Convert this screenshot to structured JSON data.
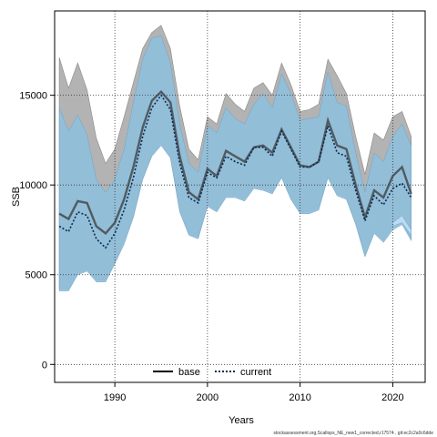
{
  "chart_data": {
    "type": "line",
    "title": "",
    "xlabel": "Years",
    "ylabel": "SSB",
    "xlim": [
      1983.5,
      2023.5
    ],
    "ylim": [
      -1000,
      19700
    ],
    "x_ticks": [
      1990,
      2000,
      2010,
      2020
    ],
    "y_ticks": [
      0,
      5000,
      10000,
      15000
    ],
    "grid": true,
    "legend": {
      "position": "bottom-center",
      "entries": [
        {
          "label": "base",
          "color": "#000000",
          "style": "solid"
        },
        {
          "label": "current",
          "color": "#1a3a6b",
          "style": "dotted"
        }
      ]
    },
    "x": [
      1984,
      1985,
      1986,
      1987,
      1988,
      1989,
      1990,
      1991,
      1992,
      1993,
      1994,
      1995,
      1996,
      1997,
      1998,
      1999,
      2000,
      2001,
      2002,
      2003,
      2004,
      2005,
      2006,
      2007,
      2008,
      2009,
      2010,
      2011,
      2012,
      2013,
      2014,
      2015,
      2016,
      2017,
      2018,
      2019,
      2020,
      2021,
      2022
    ],
    "series": [
      {
        "name": "base",
        "color": "#1a1a1a",
        "values": [
          8400,
          8100,
          9100,
          9000,
          7700,
          7300,
          7900,
          9200,
          11000,
          13200,
          14700,
          15200,
          14600,
          11600,
          9600,
          9200,
          10900,
          10500,
          11900,
          11600,
          11300,
          12100,
          12200,
          11800,
          13100,
          12100,
          11100,
          11000,
          11300,
          13600,
          12200,
          12000,
          10000,
          8200,
          9700,
          9300,
          10500,
          11000,
          9500
        ],
        "lower": [
          4200,
          4200,
          5100,
          5300,
          4700,
          4700,
          5700,
          6900,
          8300,
          10400,
          11700,
          12300,
          11600,
          8600,
          7300,
          7100,
          8900,
          8600,
          9400,
          9400,
          9200,
          9900,
          9800,
          9600,
          10500,
          9300,
          8500,
          8500,
          8700,
          10500,
          9500,
          9300,
          7900,
          6100,
          7400,
          6900,
          7700,
          7900,
          7000
        ],
        "upper": [
          17100,
          15400,
          16800,
          15300,
          12600,
          11200,
          12000,
          13800,
          15700,
          17600,
          18500,
          18900,
          17600,
          14400,
          12000,
          11400,
          13800,
          13400,
          15100,
          14500,
          14100,
          15400,
          15700,
          15000,
          16800,
          15600,
          14100,
          14200,
          14500,
          17000,
          16100,
          15100,
          12700,
          10600,
          12900,
          12500,
          13800,
          14100,
          12700
        ]
      },
      {
        "name": "current",
        "color": "#0a2a55",
        "values": [
          7700,
          7400,
          8500,
          8300,
          7000,
          6500,
          7300,
          8600,
          10400,
          12700,
          14300,
          15000,
          14200,
          11200,
          9300,
          9000,
          10700,
          10400,
          11600,
          11300,
          11100,
          12100,
          12100,
          11600,
          13000,
          12000,
          11000,
          11000,
          11300,
          13300,
          11800,
          11600,
          9700,
          8000,
          9400,
          8900,
          9800,
          10100,
          9300
        ],
        "lower": [
          4100,
          4100,
          5000,
          5200,
          4600,
          4600,
          5600,
          6700,
          8200,
          10300,
          11600,
          12200,
          11500,
          8500,
          7200,
          7000,
          8800,
          8500,
          9300,
          9300,
          9100,
          9800,
          9700,
          9500,
          10400,
          9200,
          8400,
          8400,
          8600,
          10400,
          9400,
          9200,
          7800,
          6000,
          7300,
          6800,
          7500,
          7800,
          6900
        ],
        "upper": [
          14300,
          13000,
          13900,
          12800,
          10300,
          9600,
          10300,
          12000,
          14600,
          17000,
          18200,
          18300,
          16800,
          13400,
          11200,
          10700,
          13300,
          12900,
          14300,
          13700,
          13400,
          14500,
          15100,
          14300,
          16200,
          15100,
          13600,
          13700,
          13800,
          16300,
          14600,
          14400,
          11800,
          9600,
          11800,
          11300,
          12700,
          13400,
          12200
        ]
      }
    ],
    "current_recent_lower": [
      7700,
      7900,
      7200
    ],
    "current_recent_upper": [
      7900,
      8300,
      7500
    ],
    "current_recent_x": [
      2020,
      2021,
      2022
    ]
  },
  "footer_text": "stockassessment.org,Scallops_NE_new1_corrected,r17574 , git:ec2c2a0c6dde",
  "colors": {
    "base_band": "#b3b3b3",
    "current_band": "#8fbfdc",
    "current_band_recent": "#b9dcf3"
  }
}
